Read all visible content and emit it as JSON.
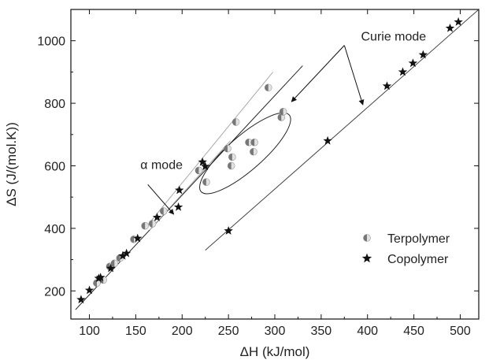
{
  "chart_data": {
    "type": "scatter",
    "xlabel": "ΔH (kJ/mol)",
    "ylabel": "ΔS (J/(mol.K))",
    "xlim": [
      80,
      520
    ],
    "ylim": [
      110,
      1100
    ],
    "x_ticks": [
      100,
      150,
      200,
      250,
      300,
      350,
      400,
      450,
      500
    ],
    "y_ticks": [
      200,
      400,
      600,
      800,
      1000
    ],
    "legend_position": "lower-right",
    "series": [
      {
        "name": "Terpolymer",
        "marker": "half-filled-circle",
        "color": "#777777",
        "points": [
          {
            "x": 108,
            "y": 225
          },
          {
            "x": 115,
            "y": 235
          },
          {
            "x": 122,
            "y": 278
          },
          {
            "x": 127,
            "y": 288
          },
          {
            "x": 133,
            "y": 305
          },
          {
            "x": 148,
            "y": 365
          },
          {
            "x": 160,
            "y": 408
          },
          {
            "x": 168,
            "y": 415
          },
          {
            "x": 180,
            "y": 455
          },
          {
            "x": 218,
            "y": 585
          },
          {
            "x": 226,
            "y": 548
          },
          {
            "x": 249,
            "y": 655
          },
          {
            "x": 253,
            "y": 600
          },
          {
            "x": 254,
            "y": 628
          },
          {
            "x": 258,
            "y": 740
          },
          {
            "x": 272,
            "y": 675
          },
          {
            "x": 277,
            "y": 645
          },
          {
            "x": 278,
            "y": 675
          },
          {
            "x": 293,
            "y": 850
          },
          {
            "x": 307,
            "y": 755
          },
          {
            "x": 309,
            "y": 773
          }
        ]
      },
      {
        "name": "Copolymer",
        "marker": "star",
        "color": "#111111",
        "points": [
          {
            "x": 91,
            "y": 172
          },
          {
            "x": 100,
            "y": 202
          },
          {
            "x": 110,
            "y": 240
          },
          {
            "x": 112,
            "y": 243
          },
          {
            "x": 123,
            "y": 272
          },
          {
            "x": 136,
            "y": 312
          },
          {
            "x": 140,
            "y": 320
          },
          {
            "x": 152,
            "y": 368
          },
          {
            "x": 173,
            "y": 435
          },
          {
            "x": 196,
            "y": 468
          },
          {
            "x": 197,
            "y": 522
          },
          {
            "x": 222,
            "y": 612
          },
          {
            "x": 225,
            "y": 598
          },
          {
            "x": 250,
            "y": 392
          },
          {
            "x": 357,
            "y": 680
          },
          {
            "x": 421,
            "y": 855
          },
          {
            "x": 438,
            "y": 900
          },
          {
            "x": 449,
            "y": 928
          },
          {
            "x": 460,
            "y": 955
          },
          {
            "x": 489,
            "y": 1040
          },
          {
            "x": 498,
            "y": 1060
          }
        ]
      }
    ],
    "fit_lines": [
      {
        "x": [
          85,
          330
        ],
        "y": [
          140,
          920
        ],
        "color": "#222222"
      },
      {
        "x": [
          160,
          298
        ],
        "y": [
          400,
          900
        ],
        "color": "#aaaaaa"
      },
      {
        "x": [
          165,
          252
        ],
        "y": [
          395,
          680
        ],
        "color": "#aaaaaa"
      },
      {
        "x": [
          225,
          520
        ],
        "y": [
          330,
          1100
        ],
        "color": "#444444"
      }
    ],
    "ellipse": {
      "cx": 268,
      "cy": 640,
      "rx": 63,
      "ry": 100,
      "angle": 41
    },
    "annotations": [
      {
        "text": "Curie mode",
        "x": 393,
        "y": 1000
      },
      {
        "text": "α mode",
        "x": 155,
        "y": 590
      }
    ],
    "arrows": [
      {
        "from": [
          375,
          985
        ],
        "to": [
          318,
          805
        ]
      },
      {
        "from": [
          375,
          985
        ],
        "to": [
          395,
          795
        ]
      },
      {
        "from": [
          163,
          540
        ],
        "to": [
          191,
          445
        ]
      }
    ]
  }
}
